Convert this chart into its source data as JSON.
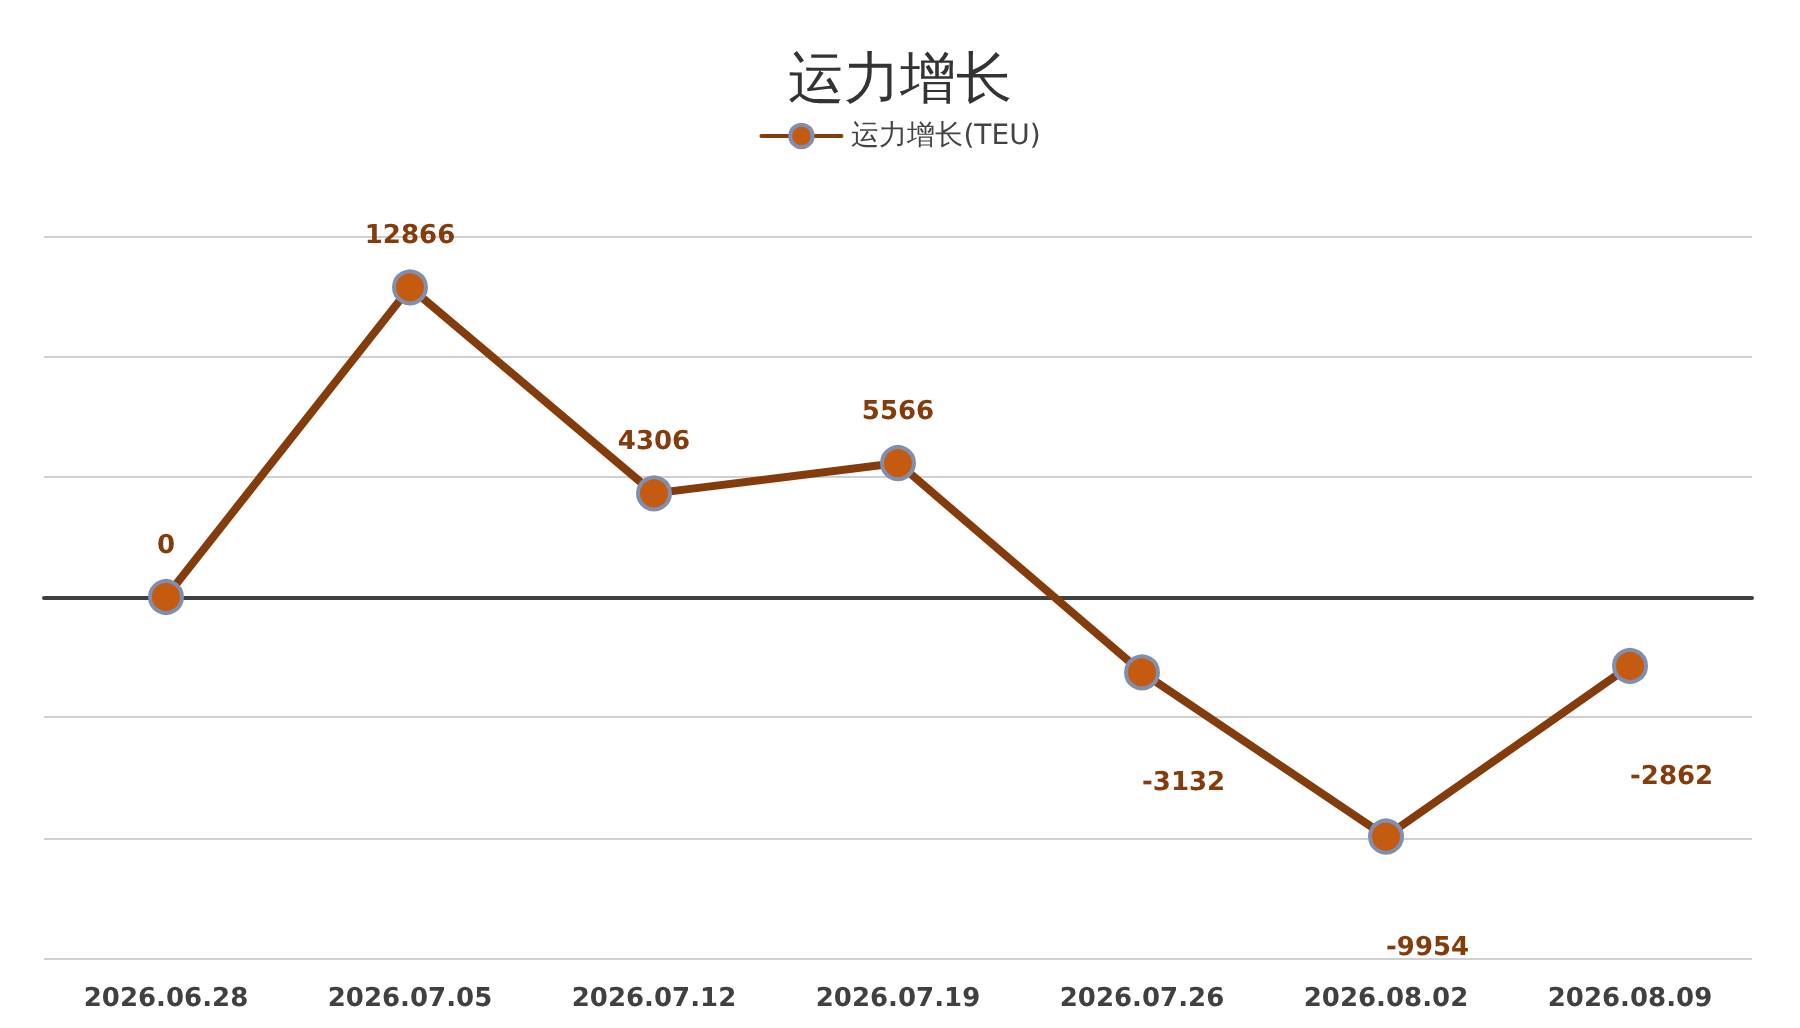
{
  "chart_data": {
    "type": "line",
    "title": "运力增长",
    "categories": [
      "2026.06.28",
      "2026.07.05",
      "2026.07.12",
      "2026.07.19",
      "2026.07.26",
      "2026.08.02",
      "2026.08.09"
    ],
    "series": [
      {
        "name": "运力增长(TEU)",
        "color": "#843c0c",
        "values": [
          0,
          12866,
          4306,
          5566,
          -3132,
          -9954,
          -2862
        ]
      }
    ],
    "ylim": [
      -15000,
      15000
    ],
    "yticks": [
      {
        "value": -15000,
        "label": null
      },
      {
        "value": -10000,
        "label": null
      },
      {
        "value": -5000,
        "label": null
      },
      {
        "value": 0,
        "label": null
      },
      {
        "value": 5000,
        "label": null
      },
      {
        "value": 10000,
        "label": null
      },
      {
        "value": 15000,
        "label": null
      }
    ],
    "tick_labels": "x",
    "grid": "y",
    "legend": "top",
    "marker": "circle",
    "line_style": "solid",
    "data_labels": true
  }
}
